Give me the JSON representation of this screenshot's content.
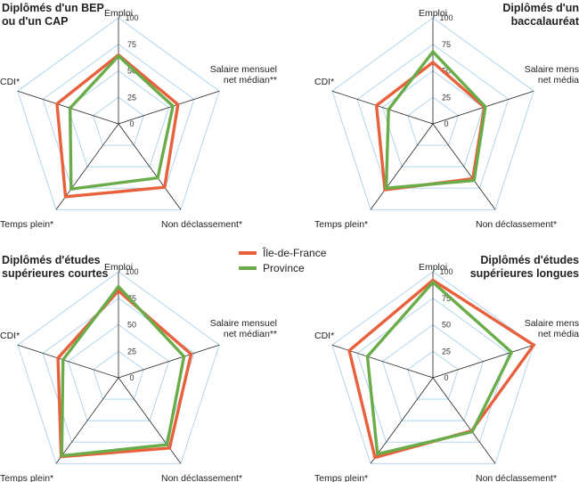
{
  "legend": [
    {
      "name": "Île-de-France",
      "color": "#e8603c"
    },
    {
      "name": "Province",
      "color": "#6aac4a"
    }
  ],
  "chart_data": [
    {
      "type": "radar",
      "title": [
        "Diplômés d'un BEP",
        "ou d'un CAP"
      ],
      "axes": [
        [
          "Emploi"
        ],
        [
          "Salaire mensuel",
          "net médian**"
        ],
        [
          "Non déclassement*"
        ],
        [
          "Temps plein*"
        ],
        [
          "CDI*"
        ]
      ],
      "ticks": [
        "0",
        "25",
        "50",
        "75",
        "100"
      ],
      "rlim": [
        0,
        100
      ],
      "series": [
        {
          "name": "Île-de-France",
          "values": [
            65,
            59,
            74,
            85,
            61
          ]
        },
        {
          "name": "Province",
          "values": [
            64,
            54,
            63,
            76,
            48
          ]
        }
      ]
    },
    {
      "type": "radar",
      "title": [
        "Diplômés d'un",
        "baccalauréat"
      ],
      "axes": [
        [
          "Emploi"
        ],
        [
          "Salaire mensuel",
          "net médian**"
        ],
        [
          "Non déclassement*"
        ],
        [
          "Temps plein*"
        ],
        [
          "CDI*"
        ]
      ],
      "ticks": [
        "0",
        "25",
        "50",
        "75",
        "100"
      ],
      "rlim": [
        0,
        100
      ],
      "series": [
        {
          "name": "Île-de-France",
          "values": [
            58,
            51,
            64,
            77,
            56
          ]
        },
        {
          "name": "Province",
          "values": [
            68,
            52,
            66,
            75,
            44
          ]
        }
      ]
    },
    {
      "type": "radar",
      "title": [
        "Diplômés d'études",
        "supérieures courtes"
      ],
      "axes": [
        [
          "Emploi"
        ],
        [
          "Salaire mensuel",
          "net médian**"
        ],
        [
          "Non déclassement*"
        ],
        [
          "Temps plein*"
        ],
        [
          "CDI*"
        ]
      ],
      "ticks": [
        "0",
        "25",
        "50",
        "75",
        "100"
      ],
      "rlim": [
        0,
        100
      ],
      "series": [
        {
          "name": "Île-de-France",
          "values": [
            82,
            72,
            82,
            92,
            60
          ]
        },
        {
          "name": "Province",
          "values": [
            86,
            65,
            78,
            91,
            55
          ]
        }
      ]
    },
    {
      "type": "radar",
      "title": [
        "Diplômés d'études",
        "supérieures longues"
      ],
      "axes": [
        [
          "Emploi"
        ],
        [
          "Salaire mensuel",
          "net médian**"
        ],
        [
          "Non déclassement*"
        ],
        [
          "Temps plein*"
        ],
        [
          "CDI*"
        ]
      ],
      "ticks": [
        "0",
        "25",
        "50",
        "75",
        "100"
      ],
      "rlim": [
        0,
        100
      ],
      "series": [
        {
          "name": "Île-de-France",
          "values": [
            92,
            100,
            62,
            93,
            83
          ]
        },
        {
          "name": "Province",
          "values": [
            90,
            78,
            63,
            89,
            65
          ]
        }
      ]
    }
  ]
}
